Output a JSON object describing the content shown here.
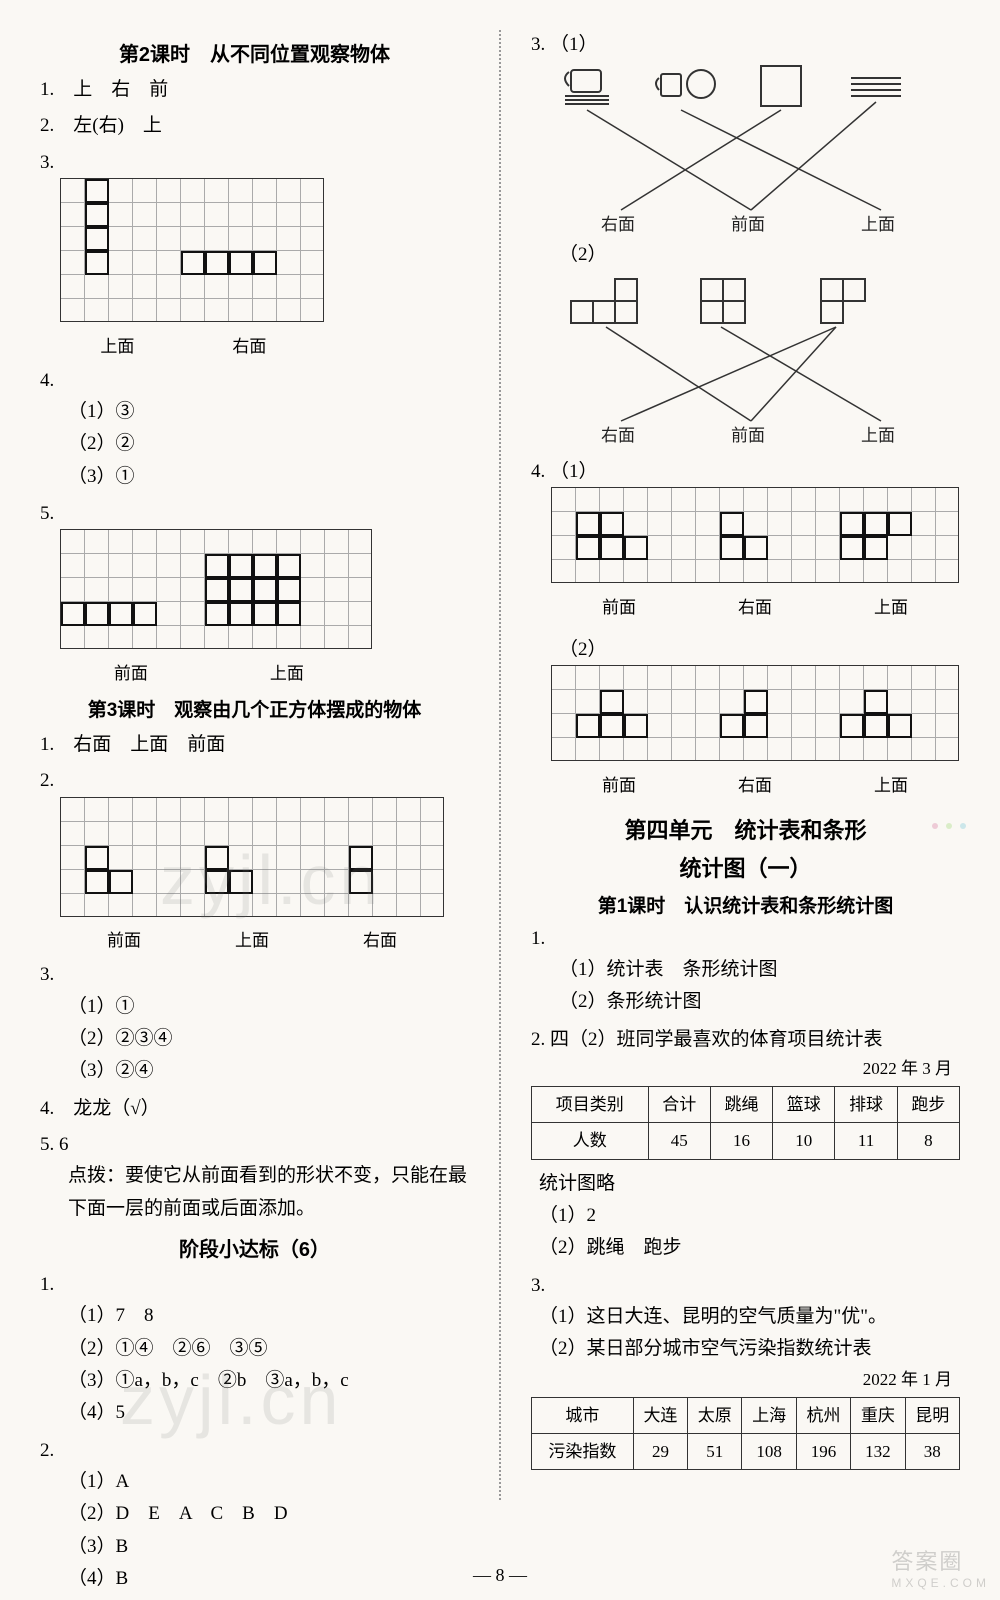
{
  "left": {
    "lesson2_title": "第2课时　从不同位置观察物体",
    "l2_q1": "1.　上　右　前",
    "l2_q2": "2.　左(右)　上",
    "l2_q3_num": "3.",
    "l2_q3_labels": {
      "a": "上面",
      "b": "右面"
    },
    "l2_q4_num": "4.",
    "l2_q4_1": "（1）③",
    "l2_q4_2": "（2）②",
    "l2_q4_3": "（3）①",
    "l2_q5_num": "5.",
    "l2_q5_labels": {
      "a": "前面",
      "b": "上面"
    },
    "lesson3_title": "第3课时　观察由几个正方体摆成的物体",
    "l3_q1": "1.　右面　上面　前面",
    "l3_q2_num": "2.",
    "l3_q2_labels": {
      "a": "前面",
      "b": "上面",
      "c": "右面"
    },
    "l3_q3_num": "3.",
    "l3_q3_1": "（1）①",
    "l3_q3_2": "（2）②③④",
    "l3_q3_3": "（3）②④",
    "l3_q4": "4.　龙龙（√）",
    "l3_q5_num": "5.",
    "l3_q5": "6",
    "l3_q5_hint": "点拨：要使它从前面看到的形状不变，只能在最下面一层的前面或后面添加。",
    "phase_title": "阶段小达标（6）",
    "p6_q1_num": "1.",
    "p6_q1_1": "（1）7　8",
    "p6_q1_2": "（2）①④　②⑥　③⑤",
    "p6_q1_3": "（3）①a，b，c　②b　③a，b，c",
    "p6_q1_4": "（4）5",
    "p6_q2_num": "2.",
    "p6_q2_1": "（1）A",
    "p6_q2_2": "（2）D　E　A　C　B　D",
    "p6_q2_3": "（3）B",
    "p6_q2_4": "（4）B"
  },
  "right": {
    "q3_num": "3.",
    "q3_1": "（1）",
    "q3_1_labels": {
      "a": "右面",
      "b": "前面",
      "c": "上面"
    },
    "q3_2": "（2）",
    "q3_2_labels": {
      "a": "右面",
      "b": "前面",
      "c": "上面"
    },
    "q4_num": "4.",
    "q4_1": "（1）",
    "q4_1_labels": {
      "a": "前面",
      "b": "右面",
      "c": "上面"
    },
    "q4_2": "（2）",
    "q4_2_labels": {
      "a": "前面",
      "b": "右面",
      "c": "上面"
    },
    "unit4_title1": "第四单元　统计表和条形",
    "unit4_title2": "统计图（一）",
    "u4_l1_title": "第1课时　认识统计表和条形统计图",
    "u4_q1_num": "1.",
    "u4_q1_1": "（1）统计表　条形统计图",
    "u4_q1_2": "（2）条形统计图",
    "u4_q2_num": "2.",
    "u4_q2_title": "四（2）班同学最喜欢的体育项目统计表",
    "u4_q2_date": "2022 年 3 月",
    "u4_table1": {
      "columns": [
        "项目类别",
        "合计",
        "跳绳",
        "篮球",
        "排球",
        "跑步"
      ],
      "rows": [
        [
          "人数",
          "45",
          "16",
          "10",
          "11",
          "8"
        ]
      ]
    },
    "u4_q2_note": "统计图略",
    "u4_q2_1": "（1）2",
    "u4_q2_2": "（2）跳绳　跑步",
    "u4_q3_num": "3.",
    "u4_q3_1": "（1）这日大连、昆明的空气质量为\"优\"。",
    "u4_q3_2": "（2）某日部分城市空气污染指数统计表",
    "u4_q3_date": "2022 年 1 月",
    "u4_table2": {
      "columns": [
        "城市",
        "大连",
        "太原",
        "上海",
        "杭州",
        "重庆",
        "昆明"
      ],
      "rows": [
        [
          "污染指数",
          "29",
          "51",
          "108",
          "196",
          "132",
          "38"
        ]
      ]
    }
  },
  "colors": {
    "page_bg": "#faf8f4",
    "text": "#222222",
    "grid_line": "#888888",
    "cell_border": "#111111",
    "divider": "#999999",
    "watermark": "rgba(120,120,120,0.15)"
  },
  "page_number": "— 8 —",
  "watermarks": {
    "w1": "zyjl.cn",
    "w2": "zyjl.cn",
    "corner_top": "答案圈",
    "corner_bottom": "MXQE.COM"
  }
}
